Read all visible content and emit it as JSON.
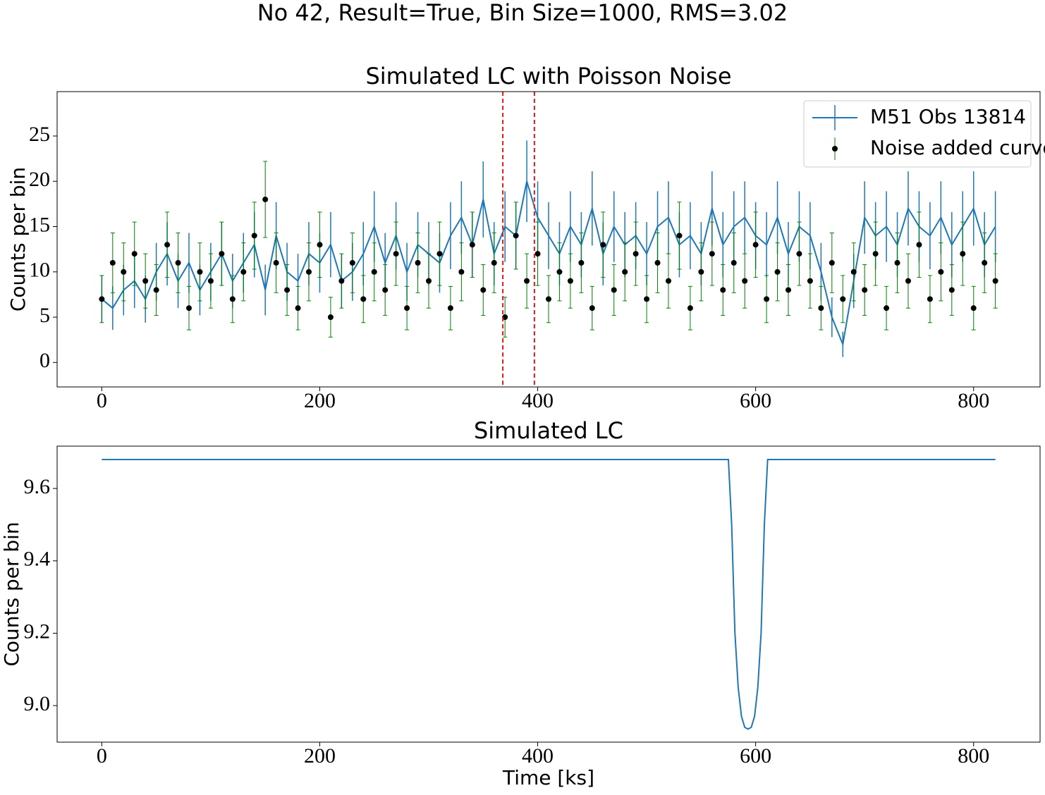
{
  "title": "No 42, Result=True, Bin Size=1000, RMS=3.02",
  "chart_data": [
    {
      "type": "errorbar",
      "title": "Simulated LC with Poisson Noise",
      "ylabel": "Counts per bin",
      "xlim": [
        -41,
        861
      ],
      "ylim": [
        -2.7,
        29.9
      ],
      "xticks": [
        0,
        200,
        400,
        600,
        800
      ],
      "yticks": [
        0,
        5,
        10,
        15,
        20,
        25
      ],
      "legend": "upper right",
      "vlines": [
        368,
        397
      ],
      "vline_color": "#e41a1c",
      "x": [
        0,
        10,
        20,
        30,
        40,
        50,
        60,
        70,
        80,
        90,
        100,
        110,
        120,
        130,
        140,
        150,
        160,
        170,
        180,
        190,
        200,
        210,
        220,
        230,
        240,
        250,
        260,
        270,
        280,
        290,
        300,
        310,
        320,
        330,
        340,
        350,
        360,
        370,
        380,
        390,
        400,
        410,
        420,
        430,
        440,
        450,
        460,
        470,
        480,
        490,
        500,
        510,
        520,
        530,
        540,
        550,
        560,
        570,
        580,
        590,
        600,
        610,
        620,
        630,
        640,
        650,
        660,
        670,
        680,
        690,
        700,
        710,
        720,
        730,
        740,
        750,
        760,
        770,
        780,
        790,
        800,
        810,
        820
      ],
      "series": [
        {
          "name": "M51 Obs 13814",
          "color": "#1f77b4",
          "style": "line",
          "values": [
            7,
            6,
            8,
            9,
            7,
            10,
            12,
            9,
            11,
            8,
            10,
            12,
            9,
            11,
            13,
            8,
            14,
            10,
            9,
            12,
            11,
            13,
            9,
            10,
            12,
            15,
            11,
            14,
            10,
            13,
            12,
            11,
            14,
            16,
            13,
            18,
            12,
            15,
            14,
            20,
            16,
            14,
            12,
            15,
            13,
            17,
            12,
            15,
            13,
            14,
            12,
            15,
            16,
            13,
            14,
            12,
            17,
            13,
            15,
            16,
            14,
            13,
            16,
            12,
            15,
            14,
            10,
            5,
            2,
            9,
            16,
            14,
            15,
            13,
            17,
            15,
            14,
            16,
            13,
            15,
            17,
            13,
            15
          ],
          "errors": [
            2.6,
            2.4,
            2.8,
            3,
            2.6,
            3.2,
            3.5,
            3,
            3.3,
            2.8,
            3.2,
            3.5,
            3,
            3.3,
            3.6,
            2.8,
            3.7,
            3.2,
            3,
            3.5,
            3.3,
            3.6,
            3,
            3.2,
            3.5,
            3.9,
            3.3,
            3.7,
            3.2,
            3.6,
            3.5,
            3.3,
            3.7,
            4,
            3.6,
            4.2,
            3.5,
            3.9,
            3.7,
            4.5,
            4,
            3.7,
            3.5,
            3.9,
            3.6,
            4.1,
            3.5,
            3.9,
            3.6,
            3.7,
            3.5,
            3.9,
            4,
            3.6,
            3.7,
            3.5,
            4.1,
            3.6,
            3.9,
            4,
            3.7,
            3.6,
            4,
            3.5,
            3.9,
            3.7,
            3.2,
            2.2,
            1.4,
            3,
            4,
            3.7,
            3.9,
            3.6,
            4.1,
            3.9,
            3.7,
            4,
            3.6,
            3.9,
            4.1,
            3.6,
            3.9
          ]
        },
        {
          "name": "Noise added curve",
          "color": "#000000",
          "error_color": "#008000",
          "style": "points",
          "values": [
            7,
            11,
            10,
            12,
            9,
            8,
            13,
            11,
            6,
            10,
            9,
            12,
            7,
            10,
            14,
            18,
            11,
            8,
            6,
            10,
            13,
            5,
            9,
            11,
            7,
            10,
            8,
            12,
            6,
            11,
            9,
            12,
            6,
            10,
            13,
            8,
            11,
            5,
            14,
            9,
            12,
            7,
            10,
            9,
            11,
            6,
            13,
            8,
            10,
            12,
            7,
            11,
            9,
            14,
            6,
            10,
            12,
            8,
            11,
            9,
            13,
            7,
            10,
            8,
            12,
            9,
            6,
            11,
            7,
            10,
            8,
            12,
            6,
            11,
            9,
            13,
            7,
            10,
            8,
            12,
            6,
            11,
            9
          ],
          "errors": [
            2.6,
            3.3,
            3.2,
            3.5,
            3,
            2.8,
            3.6,
            3.3,
            2.4,
            3.2,
            3,
            3.5,
            2.6,
            3.2,
            3.7,
            4.2,
            3.3,
            2.8,
            2.4,
            3.2,
            3.6,
            2.2,
            3,
            3.3,
            2.6,
            3.2,
            2.8,
            3.5,
            2.4,
            3.3,
            3,
            3.5,
            2.4,
            3.2,
            3.6,
            2.8,
            3.3,
            2.2,
            3.7,
            3,
            3.5,
            2.6,
            3.2,
            3,
            3.3,
            2.4,
            3.6,
            2.8,
            3.2,
            3.5,
            2.6,
            3.3,
            3,
            3.7,
            2.4,
            3.2,
            3.5,
            2.8,
            3.3,
            3,
            3.6,
            2.6,
            3.2,
            2.8,
            3.5,
            3,
            2.4,
            3.3,
            2.6,
            3.2,
            2.8,
            3.5,
            2.4,
            3.3,
            3,
            3.6,
            2.6,
            3.2,
            2.8,
            3.5,
            2.4,
            3.3,
            3
          ]
        }
      ]
    },
    {
      "type": "line",
      "title": "Simulated LC",
      "ylabel": "Counts per bin",
      "xlabel": "Time [ks]",
      "xlim": [
        -41,
        861
      ],
      "ylim": [
        8.899,
        9.717
      ],
      "xticks": [
        0,
        200,
        400,
        600,
        800
      ],
      "yticks": [
        {
          "value": 9,
          "label": "9.0"
        },
        9.2,
        9.4,
        9.6
      ],
      "color": "#1f77b4",
      "x": [
        0,
        575,
        578,
        581,
        584,
        587,
        590,
        593,
        596,
        599,
        602,
        605,
        608,
        611,
        820
      ],
      "values": [
        9.68,
        9.68,
        9.5,
        9.2,
        9.05,
        8.97,
        8.94,
        8.935,
        8.94,
        8.97,
        9.05,
        9.2,
        9.5,
        9.68,
        9.68
      ]
    }
  ]
}
